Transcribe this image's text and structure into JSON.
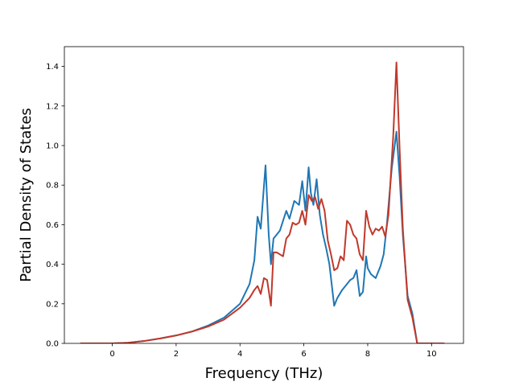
{
  "chart_data": {
    "type": "line",
    "title": "",
    "xlabel": "Frequency (THz)",
    "ylabel": "Partial Density of States",
    "xlim": [
      -1.5,
      11.0
    ],
    "ylim": [
      0.0,
      1.5
    ],
    "xticks": [
      0,
      2,
      4,
      6,
      8,
      10
    ],
    "xtick_labels": [
      "0",
      "2",
      "4",
      "6",
      "8",
      "10"
    ],
    "yticks": [
      0.0,
      0.2,
      0.4,
      0.6,
      0.8,
      1.0,
      1.2,
      1.4
    ],
    "ytick_labels": [
      "0.0",
      "0.2",
      "0.4",
      "0.6",
      "0.8",
      "1.0",
      "1.2",
      "1.4"
    ],
    "grid": false,
    "legend": "none",
    "series": [
      {
        "color": "#1f77b4",
        "x": [
          -1.0,
          0.0,
          0.5,
          1.0,
          1.5,
          2.0,
          2.5,
          3.0,
          3.5,
          4.0,
          4.3,
          4.45,
          4.55,
          4.65,
          4.8,
          4.9,
          4.97,
          5.05,
          5.15,
          5.25,
          5.35,
          5.45,
          5.55,
          5.7,
          5.85,
          5.95,
          6.05,
          6.15,
          6.22,
          6.3,
          6.4,
          6.5,
          6.6,
          6.7,
          6.8,
          6.95,
          7.05,
          7.2,
          7.35,
          7.45,
          7.55,
          7.65,
          7.75,
          7.85,
          7.95,
          8.0,
          8.1,
          8.25,
          8.4,
          8.5,
          8.6,
          8.75,
          8.9,
          9.0,
          9.1,
          9.25,
          9.4,
          9.55,
          10.4
        ],
        "y": [
          0.0,
          0.0,
          0.003,
          0.012,
          0.025,
          0.04,
          0.06,
          0.09,
          0.13,
          0.2,
          0.3,
          0.42,
          0.64,
          0.58,
          0.9,
          0.55,
          0.4,
          0.53,
          0.55,
          0.57,
          0.62,
          0.67,
          0.63,
          0.72,
          0.7,
          0.82,
          0.67,
          0.89,
          0.76,
          0.7,
          0.83,
          0.65,
          0.55,
          0.48,
          0.4,
          0.19,
          0.23,
          0.27,
          0.3,
          0.32,
          0.33,
          0.37,
          0.24,
          0.26,
          0.44,
          0.38,
          0.35,
          0.33,
          0.39,
          0.45,
          0.6,
          0.88,
          1.07,
          0.84,
          0.55,
          0.24,
          0.15,
          0.0,
          0.0
        ]
      },
      {
        "color": "#c0392b",
        "x": [
          -1.0,
          0.0,
          0.5,
          1.0,
          1.5,
          2.0,
          2.5,
          3.0,
          3.5,
          4.0,
          4.3,
          4.45,
          4.55,
          4.65,
          4.75,
          4.85,
          4.97,
          5.05,
          5.15,
          5.25,
          5.35,
          5.45,
          5.55,
          5.65,
          5.75,
          5.85,
          5.95,
          6.05,
          6.15,
          6.25,
          6.35,
          6.45,
          6.55,
          6.65,
          6.75,
          6.85,
          6.95,
          7.05,
          7.15,
          7.25,
          7.35,
          7.45,
          7.55,
          7.65,
          7.75,
          7.85,
          7.95,
          8.05,
          8.15,
          8.25,
          8.35,
          8.45,
          8.55,
          8.65,
          8.8,
          8.9,
          9.0,
          9.1,
          9.25,
          9.4,
          9.55,
          10.4
        ],
        "y": [
          0.0,
          0.0,
          0.003,
          0.012,
          0.025,
          0.04,
          0.06,
          0.085,
          0.12,
          0.18,
          0.23,
          0.27,
          0.29,
          0.25,
          0.33,
          0.32,
          0.19,
          0.46,
          0.46,
          0.45,
          0.44,
          0.53,
          0.55,
          0.61,
          0.6,
          0.61,
          0.67,
          0.6,
          0.75,
          0.72,
          0.74,
          0.68,
          0.73,
          0.67,
          0.52,
          0.45,
          0.37,
          0.38,
          0.44,
          0.42,
          0.62,
          0.6,
          0.55,
          0.53,
          0.45,
          0.42,
          0.67,
          0.59,
          0.55,
          0.58,
          0.57,
          0.59,
          0.54,
          0.65,
          1.05,
          1.42,
          0.98,
          0.58,
          0.22,
          0.13,
          0.0,
          0.0
        ]
      }
    ]
  }
}
